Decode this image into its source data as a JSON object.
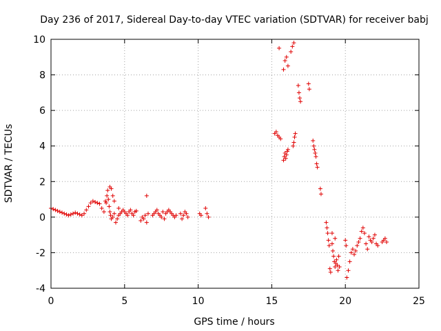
{
  "chart_data": {
    "type": "scatter",
    "title": "Day 236 of 2017, Sidereal Day-to-day VTEC variation (SDTVAR) for receiver babj",
    "xlabel": "GPS time / hours",
    "ylabel": "SDTVAR / TECUs",
    "xlim": [
      0,
      25
    ],
    "ylim": [
      -4,
      10
    ],
    "xticks": [
      0,
      5,
      10,
      15,
      20,
      25
    ],
    "yticks": [
      -4,
      -2,
      0,
      2,
      4,
      6,
      8,
      10
    ],
    "grid": true,
    "marker": "+",
    "color": "#e00000",
    "series": [
      {
        "name": "SDTVAR",
        "x": [
          0.0,
          0.15,
          0.3,
          0.45,
          0.6,
          0.75,
          0.9,
          1.05,
          1.2,
          1.35,
          1.5,
          1.65,
          1.8,
          1.95,
          2.1,
          2.25,
          2.4,
          2.55,
          2.7,
          2.85,
          3.0,
          3.15,
          3.3,
          3.45,
          3.6,
          3.75,
          3.8,
          3.85,
          3.9,
          3.95,
          4.0,
          4.05,
          4.1,
          4.2,
          4.3,
          4.4,
          4.5,
          4.6,
          4.7,
          4.8,
          4.9,
          5.0,
          5.1,
          5.2,
          5.3,
          5.4,
          5.5,
          5.6,
          5.7,
          5.8,
          6.1,
          6.2,
          6.3,
          6.4,
          6.5,
          6.6,
          6.9,
          7.0,
          7.1,
          7.2,
          7.3,
          7.4,
          7.5,
          7.6,
          7.7,
          7.8,
          7.9,
          8.0,
          8.1,
          8.2,
          8.3,
          8.4,
          8.5,
          8.8,
          8.9,
          9.0,
          9.1,
          9.2,
          9.3,
          10.1,
          10.2,
          10.5,
          10.6,
          10.7,
          15.2,
          15.3,
          15.4,
          15.5,
          15.6,
          15.8,
          15.85,
          15.9,
          15.95,
          16.0,
          16.05,
          16.1,
          15.8,
          15.9,
          16.0,
          16.1,
          16.3,
          16.4,
          16.5,
          16.45,
          16.5,
          16.55,
          16.6,
          16.8,
          16.85,
          16.9,
          16.95,
          17.5,
          17.55,
          17.8,
          17.85,
          17.9,
          17.95,
          18.0,
          18.05,
          18.1,
          18.3,
          18.35,
          18.7,
          18.75,
          18.8,
          18.85,
          18.9,
          18.95,
          19.0,
          19.1,
          19.15,
          19.2,
          19.25,
          19.3,
          19.35,
          19.4,
          19.45,
          19.5,
          19.55,
          19.6,
          19.1,
          19.3,
          20.0,
          20.05,
          20.1,
          20.2,
          20.3,
          20.4,
          20.5,
          20.6,
          20.7,
          20.8,
          20.9,
          21.0,
          21.1,
          21.2,
          21.3,
          21.4,
          21.5,
          21.6,
          21.7,
          21.8,
          21.9,
          22.0,
          22.1,
          22.2,
          22.5,
          22.6,
          22.7,
          22.8,
          4.1,
          4.2,
          4.3,
          15.5,
          3.7,
          4.0,
          4.6,
          6.5
        ],
        "y": [
          0.5,
          0.45,
          0.4,
          0.35,
          0.3,
          0.25,
          0.2,
          0.15,
          0.1,
          0.15,
          0.2,
          0.25,
          0.2,
          0.15,
          0.1,
          0.2,
          0.4,
          0.6,
          0.8,
          0.9,
          0.85,
          0.8,
          0.75,
          0.5,
          0.3,
          0.8,
          1.2,
          1.5,
          1.0,
          0.6,
          0.3,
          0.1,
          -0.1,
          0.0,
          0.2,
          -0.3,
          -0.1,
          0.1,
          0.2,
          0.3,
          0.4,
          0.3,
          0.2,
          0.1,
          0.3,
          0.4,
          0.2,
          0.1,
          0.3,
          0.35,
          -0.2,
          0.0,
          -0.1,
          0.1,
          -0.3,
          0.2,
          0.1,
          0.2,
          0.3,
          0.4,
          0.2,
          0.1,
          0.0,
          0.3,
          -0.1,
          0.2,
          0.3,
          0.4,
          0.3,
          0.2,
          0.1,
          0.0,
          0.1,
          0.2,
          -0.1,
          0.1,
          0.3,
          0.2,
          0.0,
          0.2,
          0.1,
          0.5,
          0.2,
          0.0,
          4.7,
          4.8,
          4.6,
          4.5,
          4.4,
          3.2,
          3.4,
          3.6,
          3.3,
          3.5,
          3.7,
          3.8,
          8.3,
          8.8,
          9.0,
          8.5,
          9.3,
          9.6,
          9.8,
          4.0,
          4.2,
          4.5,
          4.7,
          7.4,
          7.0,
          6.7,
          6.5,
          7.5,
          7.2,
          4.3,
          4.0,
          3.8,
          3.6,
          3.4,
          3.0,
          2.8,
          1.6,
          1.3,
          -0.3,
          -0.6,
          -0.9,
          -1.3,
          -1.6,
          -2.9,
          -3.1,
          -1.5,
          -1.9,
          -2.2,
          -2.5,
          -2.8,
          -2.6,
          -2.4,
          -2.7,
          -3.0,
          -2.2,
          -2.8,
          -0.9,
          -1.2,
          -1.3,
          -1.6,
          -3.4,
          -3.0,
          -2.5,
          -2.0,
          -1.8,
          -2.1,
          -1.9,
          -1.6,
          -1.4,
          -1.2,
          -0.8,
          -0.6,
          -0.9,
          -1.5,
          -1.8,
          -1.1,
          -1.3,
          -1.4,
          -1.2,
          -1.0,
          -1.5,
          -1.6,
          -1.4,
          -1.3,
          -1.2,
          -1.4,
          1.6,
          1.2,
          0.9,
          9.5,
          0.9,
          1.7,
          0.5,
          1.2
        ]
      }
    ]
  }
}
